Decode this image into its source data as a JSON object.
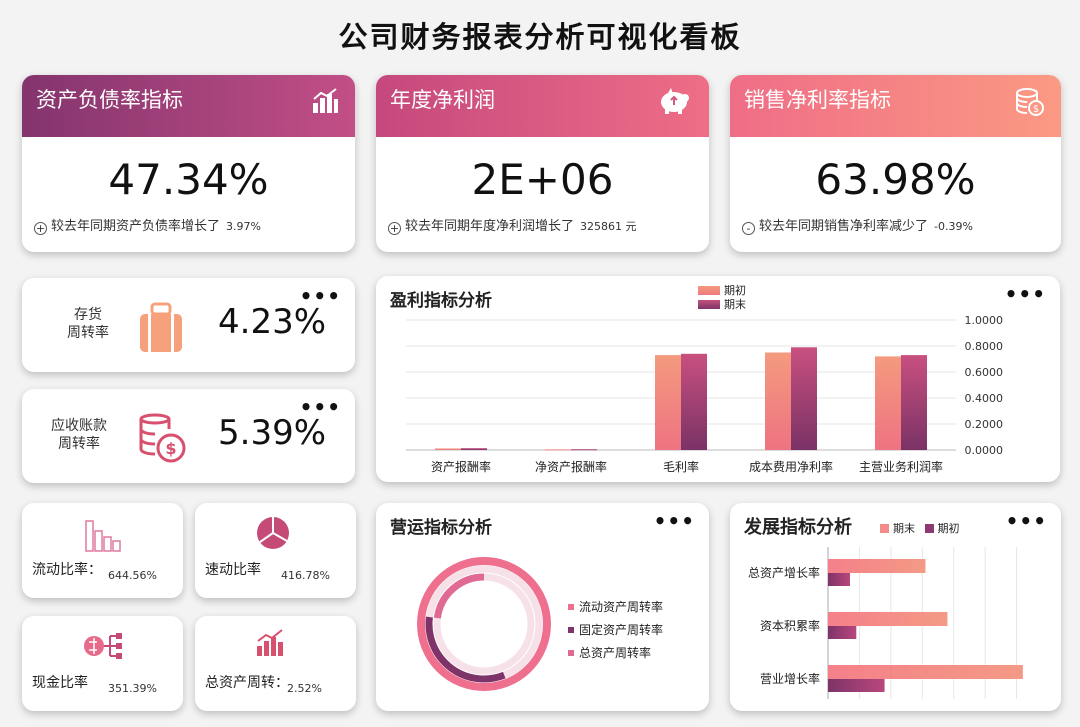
{
  "page": {
    "title": "公司财务报表分析可视化看板"
  },
  "colors": {
    "pink": "#f38b8b",
    "plum": "#8e3a72",
    "mid": "#d1567b"
  },
  "kpis": [
    {
      "title": "资产负债率指标",
      "value": "47.34%",
      "sign": "+",
      "note": "较去年同期资产负债率增长了",
      "change": "3.97%",
      "icon": "bar-chart-icon"
    },
    {
      "title": "年度净利润",
      "value": "2E+06",
      "sign": "+",
      "note": "较去年同期年度净利润增长了",
      "change": "325861 元",
      "icon": "piggy-bank-icon"
    },
    {
      "title": "销售净利率指标",
      "value": "63.98%",
      "sign": "-",
      "note": "较去年同期销售净利率减少了",
      "change": "-0.39%",
      "icon": "coins-icon"
    }
  ],
  "turnover": [
    {
      "label": "存货\n周转率",
      "value": "4.23%",
      "icon": "suitcase-icon"
    },
    {
      "label": "应收账款\n周转率",
      "value": "5.39%",
      "icon": "dollar-coins-icon"
    }
  ],
  "small": [
    {
      "label": "流动比率：",
      "value": "644.56%",
      "icon": "bar-outline-icon"
    },
    {
      "label": "速动比率",
      "value": "416.78%",
      "icon": "pie-icon"
    },
    {
      "label": "现金比率",
      "value": "351.39%",
      "icon": "flow-icon"
    },
    {
      "label": "总资产周转：",
      "value": "2.52%",
      "icon": "rising-bars-icon"
    }
  ],
  "profit_title": "盈利指标分析",
  "operation_title": "营运指标分析",
  "growth_title": "发展指标分析",
  "chart_data": [
    {
      "type": "bar",
      "title": "盈利指标分析",
      "categories": [
        "资产报酬率",
        "净资产报酬率",
        "毛利率",
        "成本费用净利率",
        "主营业务利润率"
      ],
      "series": [
        {
          "name": "期初",
          "values": [
            0.012,
            0.005,
            0.73,
            0.75,
            0.72
          ]
        },
        {
          "name": "期末",
          "values": [
            0.014,
            0.006,
            0.74,
            0.79,
            0.73
          ]
        }
      ],
      "ylim": [
        0,
        1
      ],
      "yticks": [
        "1.0000",
        "0.8000",
        "0.6000",
        "0.4000",
        "0.2000",
        "0.0000"
      ],
      "legend": "top"
    },
    {
      "type": "pie",
      "title": "营运指标分析",
      "categories": [
        "流动资产周转率",
        "固定资产周转率",
        "总资产周转率"
      ],
      "values": [
        44,
        33,
        23
      ],
      "legend": "right"
    },
    {
      "type": "bar",
      "orientation": "horizontal",
      "title": "发展指标分析",
      "categories": [
        "总资产增长率",
        "资本积累率",
        "营业增长率"
      ],
      "series": [
        {
          "name": "期末",
          "values": [
            0.31,
            0.38,
            0.62
          ]
        },
        {
          "name": "期初",
          "values": [
            0.07,
            0.09,
            0.18
          ]
        }
      ],
      "xlim": [
        0,
        0.7
      ],
      "legend": "top"
    }
  ]
}
